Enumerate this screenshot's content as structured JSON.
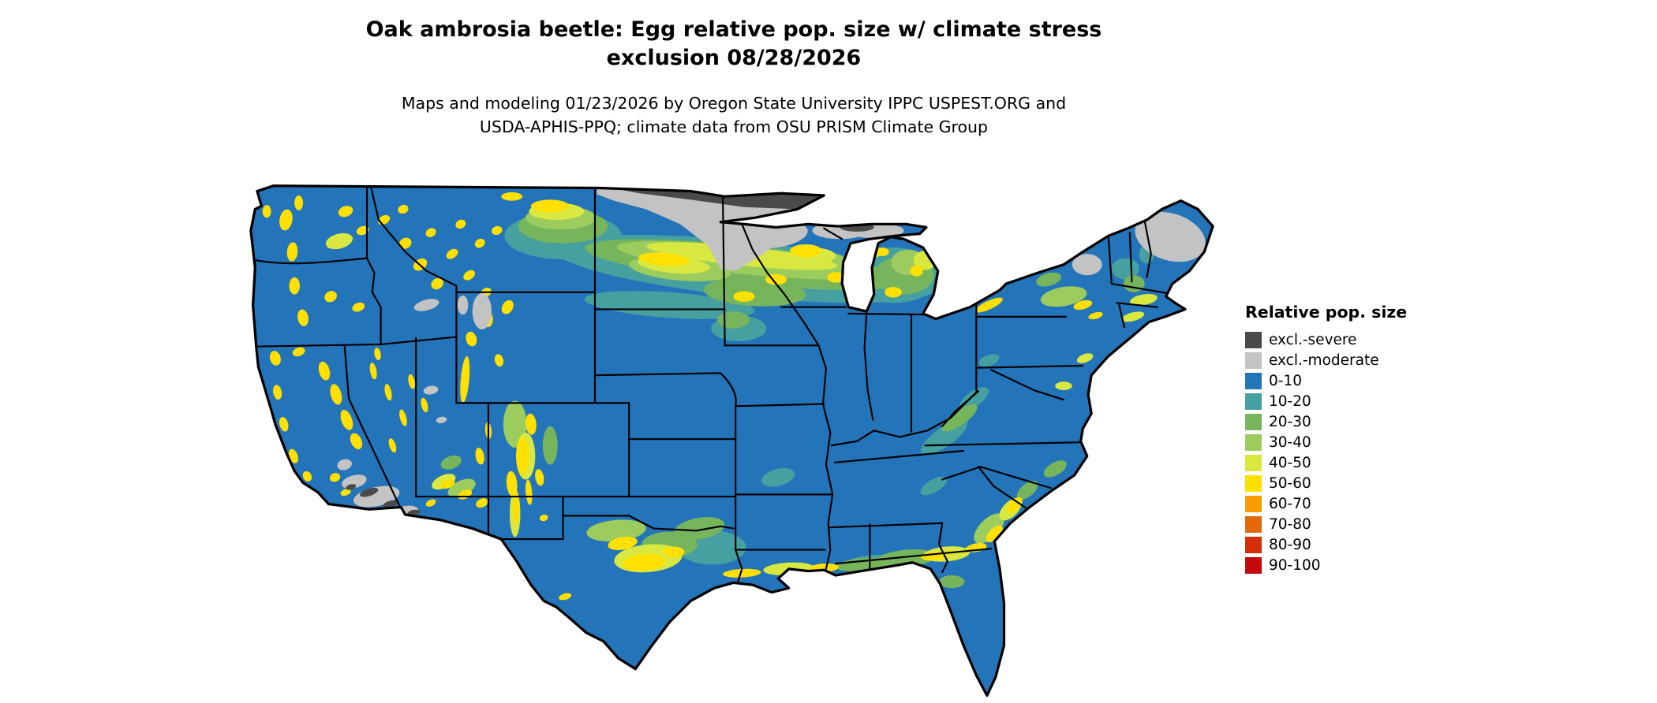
{
  "title": {
    "line1": "Oak ambrosia beetle: Egg relative pop. size w/ climate stress",
    "line2": "exclusion 08/28/2026"
  },
  "subtitle": {
    "line1": "Maps and modeling 01/23/2026 by Oregon State University IPPC USPEST.ORG and",
    "line2": "USDA-APHIS-PPQ; climate data from OSU PRISM Climate Group"
  },
  "legend": {
    "title": "Relative pop. size",
    "items": [
      {
        "label": "excl.-severe",
        "key": "excl_severe"
      },
      {
        "label": "excl.-moderate",
        "key": "excl_moderate"
      },
      {
        "label": "0-10",
        "key": "r0_10"
      },
      {
        "label": "10-20",
        "key": "r10_20"
      },
      {
        "label": "20-30",
        "key": "r20_30"
      },
      {
        "label": "30-40",
        "key": "r30_40"
      },
      {
        "label": "40-50",
        "key": "r40_50"
      },
      {
        "label": "50-60",
        "key": "r50_60"
      },
      {
        "label": "60-70",
        "key": "r60_70"
      },
      {
        "label": "70-80",
        "key": "r70_80"
      },
      {
        "label": "80-90",
        "key": "r80_90"
      },
      {
        "label": "90-100",
        "key": "r90_100"
      }
    ]
  },
  "palette": {
    "excl_severe": "#4a4a4a",
    "excl_moderate": "#c3c3c3",
    "r0_10": "#2474b9",
    "r10_20": "#47a0a0",
    "r20_30": "#77b55d",
    "r30_40": "#9ccb5e",
    "r40_50": "#d9e840",
    "r50_60": "#ffe000",
    "r60_70": "#f99d05",
    "r70_80": "#e4670b",
    "r80_90": "#d62f08",
    "r90_100": "#c40a0a"
  }
}
